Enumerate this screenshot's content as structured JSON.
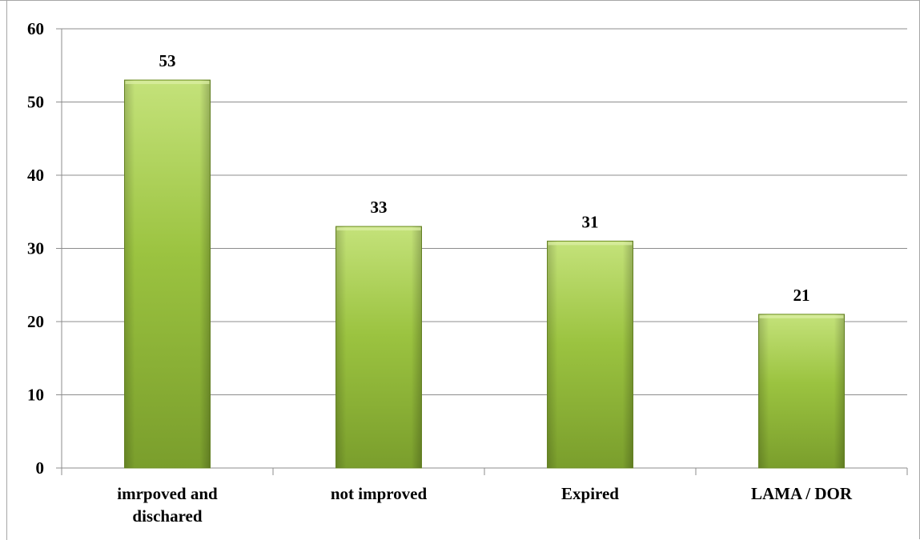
{
  "chart_data": {
    "type": "bar",
    "categories": [
      [
        "imrpoved and",
        "dischared"
      ],
      [
        "not improved"
      ],
      [
        "Expired"
      ],
      [
        "LAMA / DOR"
      ]
    ],
    "values": [
      53,
      33,
      31,
      21
    ],
    "value_labels": [
      "53",
      "33",
      "31",
      "21"
    ],
    "ylim": [
      0,
      60
    ],
    "yticks": [
      0,
      10,
      20,
      30,
      40,
      50,
      60
    ],
    "ytick_labels": [
      "0",
      "10",
      "20",
      "30",
      "40",
      "50",
      "60"
    ],
    "grid": true,
    "title": "",
    "xlabel": "",
    "ylabel": "",
    "colors": {
      "bar_top": "#c4e27a",
      "bar_mid": "#9bc340",
      "bar_bottom": "#7a9e2c",
      "bar_edge": "#6f8f27",
      "grid": "#8c8c8c",
      "axis": "#8c8c8c"
    }
  }
}
